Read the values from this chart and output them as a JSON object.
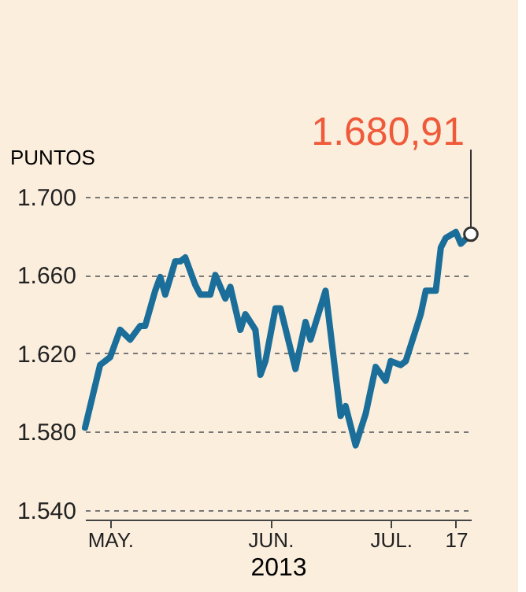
{
  "chart_data": {
    "type": "line",
    "ylabel": "PUNTOS",
    "xlabel": "2013",
    "x": [
      "2013-05-01",
      "2013-05-04",
      "2013-05-06",
      "2013-05-08",
      "2013-05-10",
      "2013-05-12",
      "2013-05-13",
      "2013-05-15",
      "2013-05-16",
      "2013-05-17",
      "2013-05-19",
      "2013-05-20",
      "2013-05-21",
      "2013-05-23",
      "2013-05-24",
      "2013-05-26",
      "2013-05-27",
      "2013-05-29",
      "2013-05-30",
      "2013-06-01",
      "2013-06-02",
      "2013-06-04",
      "2013-06-05",
      "2013-06-06",
      "2013-06-08",
      "2013-06-09",
      "2013-06-12",
      "2013-06-14",
      "2013-06-15",
      "2013-06-18",
      "2013-06-21",
      "2013-06-22",
      "2013-06-24",
      "2013-06-26",
      "2013-06-28",
      "2013-06-30",
      "2013-07-01",
      "2013-07-03",
      "2013-07-04",
      "2013-07-06",
      "2013-07-07",
      "2013-07-08",
      "2013-07-10",
      "2013-07-11",
      "2013-07-12",
      "2013-07-14",
      "2013-07-15",
      "2013-07-17"
    ],
    "series": [
      {
        "color": "#1a6e99",
        "values": [
          1582,
          1614,
          1618,
          1632,
          1627,
          1634,
          1634,
          1652,
          1659,
          1650,
          1667,
          1667,
          1669,
          1655,
          1650,
          1650,
          1660,
          1648,
          1654,
          1632,
          1640,
          1632,
          1609,
          1616,
          1643,
          1643,
          1612,
          1636,
          1627,
          1652,
          1588,
          1593,
          1573,
          1589,
          1613,
          1606,
          1616,
          1614,
          1616,
          1632,
          1640,
          1652,
          1652,
          1674,
          1679,
          1682,
          1676,
          1680.91
        ]
      }
    ],
    "xlim": [
      "2013-05-01",
      "2013-07-17"
    ],
    "xticks": [
      {
        "value": "2013-05-06",
        "label": "MAY."
      },
      {
        "value": "2013-06-07",
        "label": "JUN."
      },
      {
        "value": "2013-07-01",
        "label": "JUL."
      },
      {
        "value": "2013-07-14",
        "label": "17"
      }
    ],
    "ylim": [
      1535,
      1700
    ],
    "yticks": [
      {
        "value": 1540,
        "label": "1.540"
      },
      {
        "value": 1580,
        "label": "1.580"
      },
      {
        "value": 1620,
        "label": "1.620"
      },
      {
        "value": 1660,
        "label": "1.660"
      },
      {
        "value": 1700,
        "label": "1.700"
      }
    ],
    "grid": "y",
    "marker": "none",
    "line_style": "solid",
    "annotations": [
      {
        "text": "1.680,91",
        "x": "2013-07-17",
        "y": 1680.91
      }
    ]
  }
}
